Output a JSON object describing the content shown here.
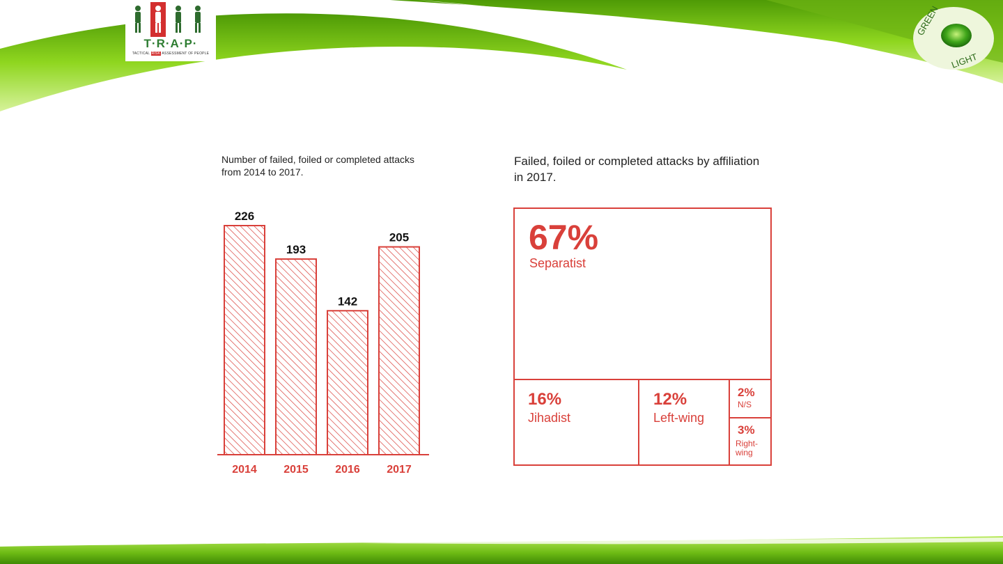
{
  "branding": {
    "left_logo": {
      "letters": "T·R·A·P·",
      "subtitle_left": "TACTICAL",
      "subtitle_mid": "RISK",
      "subtitle_right": "ASSESSMENT OF PEOPLE"
    },
    "right_logo": {
      "top_text": "GREEN",
      "bottom_text": "LIGHT"
    }
  },
  "colors": {
    "accent": "#d9403a",
    "green": "#7cc61a"
  },
  "chart_data": [
    {
      "type": "bar",
      "title": "Number of failed, foiled or completed attacks from 2014 to 2017.",
      "categories": [
        "2014",
        "2015",
        "2016",
        "2017"
      ],
      "values": [
        226,
        193,
        142,
        205
      ],
      "ylim": [
        0,
        226
      ],
      "xlabel": "",
      "ylabel": "",
      "grid": false,
      "fill": "hatched"
    },
    {
      "type": "treemap",
      "title": "Failed, foiled or completed attacks by affiliation in 2017.",
      "items": [
        {
          "value": 67,
          "pct_label": "67%",
          "name": "Separatist"
        },
        {
          "value": 16,
          "pct_label": "16%",
          "name": "Jihadist"
        },
        {
          "value": 12,
          "pct_label": "12%",
          "name": "Left-wing"
        },
        {
          "value": 2,
          "pct_label": "2%",
          "name": "N/S"
        },
        {
          "value": 3,
          "pct_label": "3%",
          "name": "Right-wing"
        }
      ]
    }
  ]
}
